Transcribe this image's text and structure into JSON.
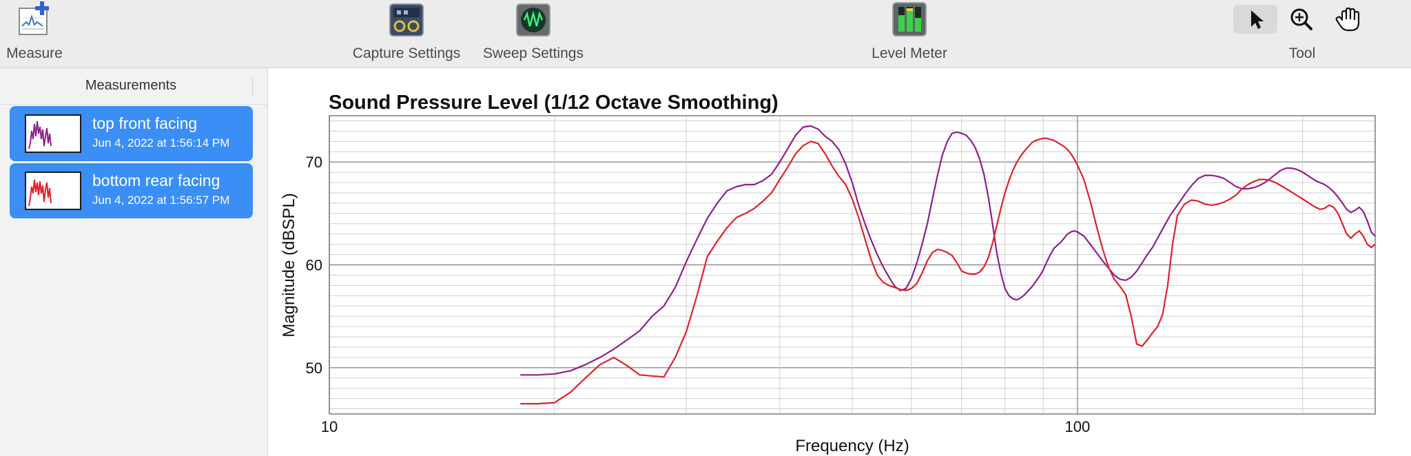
{
  "toolbar": {
    "measure_label": "Measure",
    "capture_settings_label": "Capture Settings",
    "sweep_settings_label": "Sweep Settings",
    "level_meter_label": "Level Meter",
    "tool_label": "Tool",
    "icons": {
      "measure": "measure-plus-icon",
      "capture": "capture-settings-icon",
      "sweep": "sweep-settings-icon",
      "level": "level-meter-icon",
      "pointer": "pointer-arrow-icon",
      "zoom": "zoom-in-icon",
      "hand": "hand-pan-icon"
    },
    "active_tool": "pointer"
  },
  "sidebar": {
    "header": "Measurements",
    "selection_color": "#3a8ef6",
    "items": [
      {
        "name": "top front facing",
        "date": "Jun 4, 2022 at 1:56:14 PM",
        "color": "#8e1f8c"
      },
      {
        "name": "bottom rear facing",
        "date": "Jun 4, 2022 at 1:56:57 PM",
        "color": "#e0202a"
      }
    ]
  },
  "chart_data": {
    "type": "line",
    "title": "Sound Pressure Level (1/12 Octave Smoothing)",
    "xlabel": "Frequency (Hz)",
    "ylabel": "Magnitude (dBSPL)",
    "x_scale": "log",
    "xlim": [
      10,
      250
    ],
    "ylim": [
      45.5,
      74.5
    ],
    "x_ticks": [
      {
        "value": 10,
        "label": "10"
      },
      {
        "value": 100,
        "label": "100"
      }
    ],
    "y_ticks": [
      {
        "value": 50,
        "label": "50"
      },
      {
        "value": 60,
        "label": "60"
      },
      {
        "value": 70,
        "label": "70"
      }
    ],
    "grid": true,
    "series": [
      {
        "name": "top front facing",
        "color": "#8e1f8c",
        "points": [
          [
            18,
            49.3
          ],
          [
            19,
            49.3
          ],
          [
            20,
            49.4
          ],
          [
            21,
            49.7
          ],
          [
            22,
            50.3
          ],
          [
            23,
            51.0
          ],
          [
            24,
            51.8
          ],
          [
            25,
            52.7
          ],
          [
            26,
            53.6
          ],
          [
            27,
            55.0
          ],
          [
            28,
            56.0
          ],
          [
            29,
            57.8
          ],
          [
            30,
            60.3
          ],
          [
            31,
            62.5
          ],
          [
            32,
            64.5
          ],
          [
            33,
            66.0
          ],
          [
            34,
            67.2
          ],
          [
            35,
            67.6
          ],
          [
            36,
            67.8
          ],
          [
            37,
            67.8
          ],
          [
            38,
            68.2
          ],
          [
            39,
            68.8
          ],
          [
            40,
            70.0
          ],
          [
            41,
            71.3
          ],
          [
            42,
            72.6
          ],
          [
            43,
            73.4
          ],
          [
            44,
            73.5
          ],
          [
            45,
            73.2
          ],
          [
            46,
            72.5
          ],
          [
            47,
            72.0
          ],
          [
            48,
            71.2
          ],
          [
            49,
            69.8
          ],
          [
            50,
            68.0
          ],
          [
            51,
            65.8
          ],
          [
            52,
            64.0
          ],
          [
            53,
            62.4
          ],
          [
            54,
            61.0
          ],
          [
            55,
            59.8
          ],
          [
            56,
            58.8
          ],
          [
            57,
            57.9
          ],
          [
            58,
            57.5
          ],
          [
            59,
            57.7
          ],
          [
            60,
            58.7
          ],
          [
            61,
            60.2
          ],
          [
            62,
            62.0
          ],
          [
            63,
            64.0
          ],
          [
            64,
            66.4
          ],
          [
            65,
            68.7
          ],
          [
            66,
            70.7
          ],
          [
            67,
            72.0
          ],
          [
            68,
            72.8
          ],
          [
            69,
            72.9
          ],
          [
            70,
            72.8
          ],
          [
            71,
            72.6
          ],
          [
            72,
            72.1
          ],
          [
            73,
            71.4
          ],
          [
            74,
            70.3
          ],
          [
            75,
            68.8
          ],
          [
            76,
            66.6
          ],
          [
            77,
            64.0
          ],
          [
            78,
            61.2
          ],
          [
            79,
            59.2
          ],
          [
            80,
            57.7
          ],
          [
            81,
            57.0
          ],
          [
            82,
            56.7
          ],
          [
            83,
            56.6
          ],
          [
            84,
            56.8
          ],
          [
            85,
            57.1
          ],
          [
            86,
            57.5
          ],
          [
            87,
            57.9
          ],
          [
            88,
            58.4
          ],
          [
            89,
            58.9
          ],
          [
            90,
            59.5
          ],
          [
            91,
            60.3
          ],
          [
            92,
            61.0
          ],
          [
            93,
            61.6
          ],
          [
            94,
            61.9
          ],
          [
            95,
            62.2
          ],
          [
            96,
            62.6
          ],
          [
            97,
            63.0
          ],
          [
            98,
            63.2
          ],
          [
            99,
            63.3
          ],
          [
            100,
            63.2
          ],
          [
            102,
            62.8
          ],
          [
            104,
            62.0
          ],
          [
            106,
            61.2
          ],
          [
            108,
            60.4
          ],
          [
            110,
            59.7
          ],
          [
            112,
            59.0
          ],
          [
            114,
            58.6
          ],
          [
            116,
            58.5
          ],
          [
            118,
            58.8
          ],
          [
            120,
            59.4
          ],
          [
            122,
            60.2
          ],
          [
            124,
            61.0
          ],
          [
            126,
            61.7
          ],
          [
            128,
            62.6
          ],
          [
            130,
            63.5
          ],
          [
            133,
            64.8
          ],
          [
            136,
            65.8
          ],
          [
            139,
            66.8
          ],
          [
            142,
            67.7
          ],
          [
            145,
            68.4
          ],
          [
            148,
            68.7
          ],
          [
            151,
            68.7
          ],
          [
            154,
            68.6
          ],
          [
            157,
            68.4
          ],
          [
            160,
            68.0
          ],
          [
            163,
            67.6
          ],
          [
            166,
            67.4
          ],
          [
            169,
            67.4
          ],
          [
            172,
            67.5
          ],
          [
            175,
            67.7
          ],
          [
            178,
            68.0
          ],
          [
            181,
            68.4
          ],
          [
            184,
            68.8
          ],
          [
            187,
            69.2
          ],
          [
            190,
            69.4
          ],
          [
            193,
            69.4
          ],
          [
            196,
            69.3
          ],
          [
            199,
            69.1
          ],
          [
            202,
            68.8
          ],
          [
            205,
            68.5
          ],
          [
            208,
            68.2
          ],
          [
            211,
            68.0
          ],
          [
            214,
            67.8
          ],
          [
            217,
            67.5
          ],
          [
            220,
            67.1
          ],
          [
            223,
            66.6
          ],
          [
            226,
            66.0
          ],
          [
            229,
            65.4
          ],
          [
            232,
            65.1
          ],
          [
            235,
            65.3
          ],
          [
            238,
            65.6
          ],
          [
            241,
            65.2
          ],
          [
            244,
            64.3
          ],
          [
            247,
            63.2
          ],
          [
            250,
            62.8
          ]
        ]
      },
      {
        "name": "bottom rear facing",
        "color": "#e0202a",
        "points": [
          [
            18,
            46.5
          ],
          [
            19,
            46.5
          ],
          [
            20,
            46.6
          ],
          [
            21,
            47.6
          ],
          [
            22,
            49.0
          ],
          [
            23,
            50.3
          ],
          [
            24,
            51.0
          ],
          [
            25,
            50.2
          ],
          [
            26,
            49.3
          ],
          [
            27,
            49.2
          ],
          [
            28,
            49.1
          ],
          [
            29,
            51.0
          ],
          [
            30,
            53.5
          ],
          [
            31,
            57.0
          ],
          [
            32,
            60.8
          ],
          [
            33,
            62.3
          ],
          [
            34,
            63.6
          ],
          [
            35,
            64.6
          ],
          [
            36,
            65.0
          ],
          [
            37,
            65.5
          ],
          [
            38,
            66.2
          ],
          [
            39,
            67.0
          ],
          [
            40,
            68.3
          ],
          [
            41,
            69.5
          ],
          [
            42,
            70.8
          ],
          [
            43,
            71.6
          ],
          [
            44,
            72.0
          ],
          [
            45,
            71.8
          ],
          [
            46,
            70.8
          ],
          [
            47,
            69.6
          ],
          [
            48,
            68.6
          ],
          [
            49,
            67.8
          ],
          [
            50,
            66.4
          ],
          [
            51,
            64.6
          ],
          [
            52,
            62.5
          ],
          [
            53,
            60.5
          ],
          [
            54,
            59.0
          ],
          [
            55,
            58.3
          ],
          [
            56,
            58.0
          ],
          [
            57,
            57.8
          ],
          [
            58,
            57.6
          ],
          [
            59,
            57.5
          ],
          [
            60,
            57.7
          ],
          [
            61,
            58.2
          ],
          [
            62,
            59.2
          ],
          [
            63,
            60.4
          ],
          [
            64,
            61.2
          ],
          [
            65,
            61.5
          ],
          [
            66,
            61.4
          ],
          [
            67,
            61.2
          ],
          [
            68,
            60.9
          ],
          [
            69,
            60.2
          ],
          [
            70,
            59.4
          ],
          [
            71,
            59.2
          ],
          [
            72,
            59.1
          ],
          [
            73,
            59.1
          ],
          [
            74,
            59.3
          ],
          [
            75,
            59.8
          ],
          [
            76,
            60.7
          ],
          [
            77,
            62.1
          ],
          [
            78,
            63.8
          ],
          [
            79,
            65.5
          ],
          [
            80,
            67.0
          ],
          [
            81,
            68.2
          ],
          [
            82,
            69.2
          ],
          [
            83,
            70.0
          ],
          [
            84,
            70.6
          ],
          [
            85,
            71.1
          ],
          [
            86,
            71.5
          ],
          [
            87,
            71.9
          ],
          [
            88,
            72.1
          ],
          [
            89,
            72.2
          ],
          [
            90,
            72.3
          ],
          [
            91,
            72.3
          ],
          [
            92,
            72.2
          ],
          [
            93,
            72.1
          ],
          [
            94,
            71.9
          ],
          [
            95,
            71.7
          ],
          [
            96,
            71.5
          ],
          [
            97,
            71.2
          ],
          [
            98,
            70.8
          ],
          [
            99,
            70.3
          ],
          [
            100,
            69.7
          ],
          [
            102,
            68.3
          ],
          [
            104,
            66.2
          ],
          [
            106,
            63.8
          ],
          [
            108,
            61.6
          ],
          [
            110,
            59.8
          ],
          [
            112,
            58.6
          ],
          [
            114,
            57.9
          ],
          [
            116,
            57.1
          ],
          [
            118,
            55.0
          ],
          [
            120,
            52.3
          ],
          [
            122,
            52.1
          ],
          [
            124,
            52.7
          ],
          [
            126,
            53.4
          ],
          [
            128,
            54.0
          ],
          [
            130,
            55.2
          ],
          [
            132,
            58.0
          ],
          [
            134,
            62.0
          ],
          [
            136,
            64.8
          ],
          [
            139,
            65.9
          ],
          [
            142,
            66.3
          ],
          [
            145,
            66.2
          ],
          [
            148,
            65.9
          ],
          [
            151,
            65.8
          ],
          [
            154,
            65.9
          ],
          [
            157,
            66.1
          ],
          [
            160,
            66.4
          ],
          [
            163,
            66.8
          ],
          [
            166,
            67.4
          ],
          [
            169,
            67.8
          ],
          [
            172,
            68.1
          ],
          [
            175,
            68.3
          ],
          [
            178,
            68.3
          ],
          [
            181,
            68.2
          ],
          [
            184,
            68.0
          ],
          [
            187,
            67.7
          ],
          [
            190,
            67.4
          ],
          [
            193,
            67.1
          ],
          [
            196,
            66.8
          ],
          [
            199,
            66.5
          ],
          [
            202,
            66.2
          ],
          [
            205,
            65.9
          ],
          [
            208,
            65.6
          ],
          [
            211,
            65.4
          ],
          [
            214,
            65.5
          ],
          [
            217,
            65.8
          ],
          [
            220,
            65.6
          ],
          [
            223,
            65.0
          ],
          [
            226,
            64.0
          ],
          [
            229,
            63.0
          ],
          [
            232,
            62.6
          ],
          [
            235,
            63.0
          ],
          [
            238,
            63.3
          ],
          [
            241,
            62.8
          ],
          [
            244,
            62.0
          ],
          [
            247,
            61.7
          ],
          [
            250,
            62.0
          ]
        ]
      }
    ]
  }
}
